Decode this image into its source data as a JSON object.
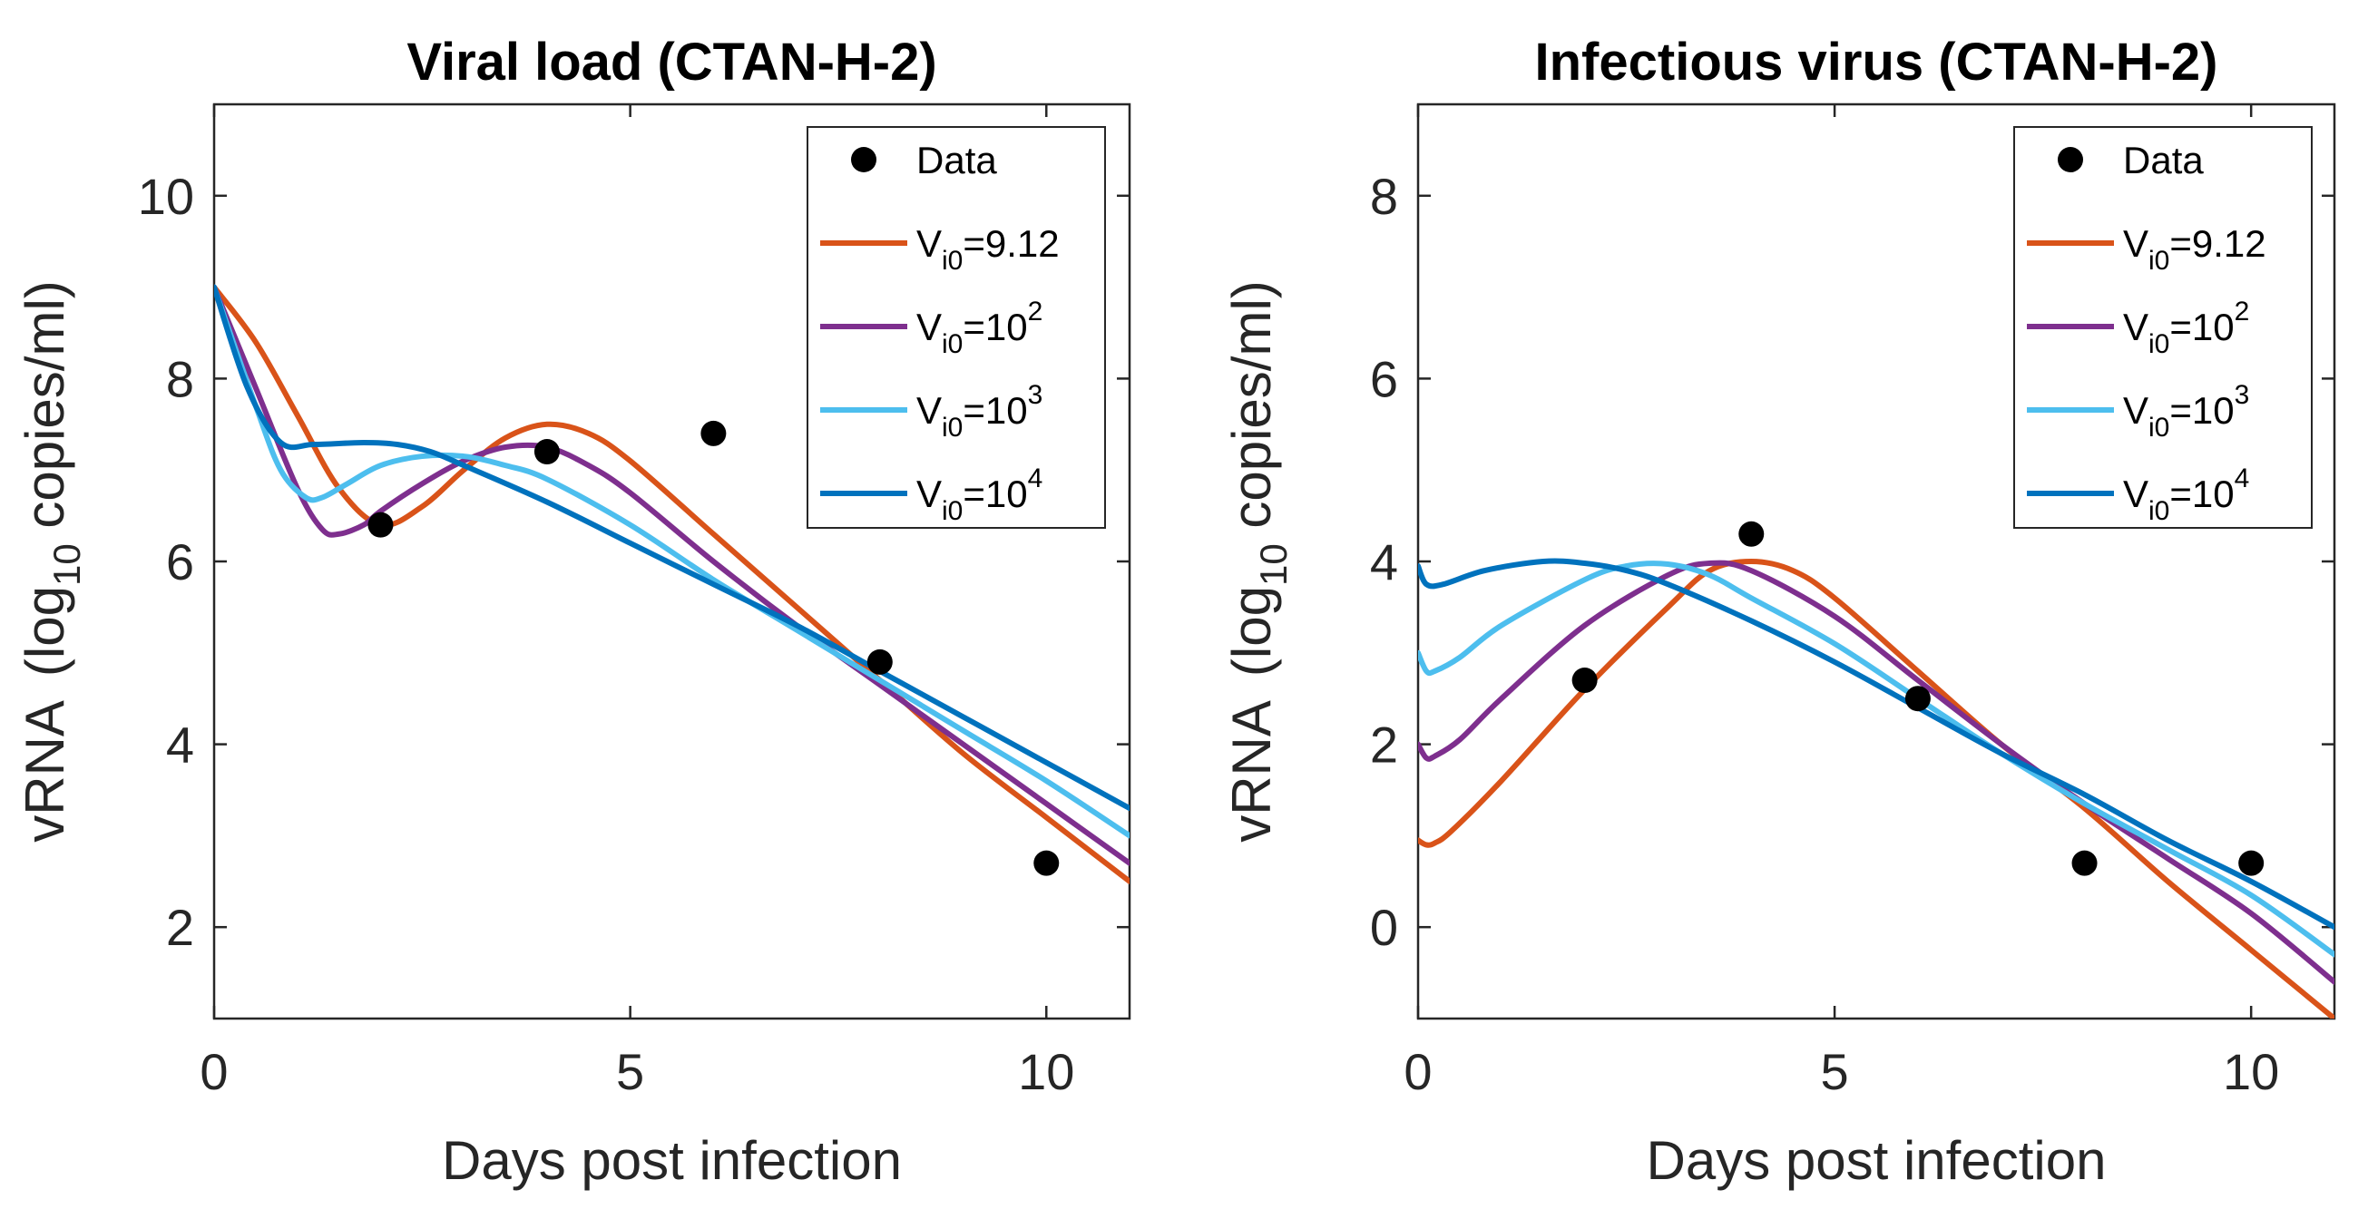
{
  "chart_data": [
    {
      "type": "line",
      "title": "Viral load (CTAN-H-2)",
      "xlabel": "Days post infection",
      "ylabel": {
        "main": "vRNA",
        "open": "(log",
        "sub": "10",
        "rest": " copies/ml)"
      },
      "xlim": [
        0,
        11
      ],
      "ylim": [
        1,
        11
      ],
      "xticks": [
        0,
        5,
        10
      ],
      "yticks": [
        2,
        4,
        6,
        8,
        10
      ],
      "grid": false,
      "legend_position": "top-right",
      "data_points": {
        "name": "Data",
        "color": "#000000",
        "x": [
          2,
          4,
          6,
          8,
          10
        ],
        "y": [
          6.4,
          7.2,
          7.4,
          4.9,
          2.7
        ]
      },
      "series": [
        {
          "name": "V_i0=9.12",
          "label": {
            "base": "V",
            "sub": "i0",
            "rest": "=9.12",
            "sup": ""
          },
          "color": "#D95319",
          "x": [
            0,
            0.5,
            1,
            1.5,
            2,
            2.5,
            3,
            3.5,
            4,
            4.5,
            5,
            6,
            7,
            8,
            9,
            10,
            11
          ],
          "y": [
            9.0,
            8.4,
            7.6,
            6.8,
            6.4,
            6.6,
            7.0,
            7.35,
            7.5,
            7.4,
            7.1,
            6.3,
            5.5,
            4.7,
            3.9,
            3.2,
            2.5
          ]
        },
        {
          "name": "V_i0=10^2",
          "label": {
            "base": "V",
            "sub": "i0",
            "rest": "=10",
            "sup": "2"
          },
          "color": "#7E2F8E",
          "x": [
            0,
            0.5,
            1,
            1.3,
            1.5,
            1.8,
            2,
            2.5,
            3,
            3.5,
            4,
            4.5,
            5,
            6,
            7,
            8,
            9,
            10,
            11
          ],
          "y": [
            9.0,
            7.9,
            6.8,
            6.35,
            6.3,
            6.4,
            6.55,
            6.85,
            7.1,
            7.25,
            7.25,
            7.05,
            6.75,
            6.0,
            5.3,
            4.65,
            4.0,
            3.35,
            2.7
          ]
        },
        {
          "name": "V_i0=10^3",
          "label": {
            "base": "V",
            "sub": "i0",
            "rest": "=10",
            "sup": "3"
          },
          "color": "#4DBEEE",
          "x": [
            0,
            0.5,
            0.8,
            1.1,
            1.3,
            1.6,
            2,
            2.5,
            3,
            3.5,
            4,
            5,
            6,
            7,
            8,
            9,
            10,
            11
          ],
          "y": [
            9.0,
            7.7,
            7.0,
            6.7,
            6.7,
            6.85,
            7.05,
            7.15,
            7.15,
            7.05,
            6.9,
            6.4,
            5.8,
            5.25,
            4.7,
            4.15,
            3.6,
            3.0
          ]
        },
        {
          "name": "V_i0=10^4",
          "label": {
            "base": "V",
            "sub": "i0",
            "rest": "=10",
            "sup": "4"
          },
          "color": "#0072BD",
          "x": [
            0,
            0.4,
            0.8,
            1.2,
            1.8,
            2.2,
            2.6,
            3,
            4,
            5,
            6,
            7,
            8,
            9,
            10,
            11
          ],
          "y": [
            9.0,
            7.9,
            7.3,
            7.28,
            7.3,
            7.28,
            7.2,
            7.05,
            6.65,
            6.2,
            5.75,
            5.3,
            4.8,
            4.3,
            3.8,
            3.3
          ]
        }
      ]
    },
    {
      "type": "line",
      "title": "Infectious virus (CTAN-H-2)",
      "xlabel": "Days post infection",
      "ylabel": {
        "main": "vRNA",
        "open": "(log",
        "sub": "10",
        "rest": " copies/ml)"
      },
      "xlim": [
        0,
        11
      ],
      "ylim": [
        -1,
        9
      ],
      "xticks": [
        0,
        5,
        10
      ],
      "yticks": [
        0,
        2,
        4,
        6,
        8
      ],
      "grid": false,
      "legend_position": "top-right",
      "data_points": {
        "name": "Data",
        "color": "#000000",
        "x": [
          2,
          4,
          6,
          8,
          10
        ],
        "y": [
          2.7,
          4.3,
          2.5,
          0.7,
          0.7
        ]
      },
      "series": [
        {
          "name": "V_i0=9.12",
          "label": {
            "base": "V",
            "sub": "i0",
            "rest": "=9.12",
            "sup": ""
          },
          "color": "#D95319",
          "x": [
            0,
            0.1,
            0.2,
            0.4,
            1,
            2,
            3,
            3.5,
            4,
            4.5,
            5,
            6,
            7,
            8,
            9,
            10,
            11
          ],
          "y": [
            0.95,
            0.9,
            0.92,
            1.05,
            1.6,
            2.6,
            3.5,
            3.9,
            4.0,
            3.9,
            3.6,
            2.8,
            2.0,
            1.3,
            0.5,
            -0.25,
            -1.0
          ]
        },
        {
          "name": "V_i0=10^2",
          "label": {
            "base": "V",
            "sub": "i0",
            "rest": "=10",
            "sup": "2"
          },
          "color": "#7E2F8E",
          "x": [
            0,
            0.1,
            0.2,
            0.5,
            1,
            2,
            3,
            3.5,
            4,
            5,
            6,
            7,
            8,
            9,
            10,
            11
          ],
          "y": [
            2.0,
            1.85,
            1.87,
            2.05,
            2.5,
            3.3,
            3.85,
            3.98,
            3.9,
            3.4,
            2.7,
            2.0,
            1.35,
            0.75,
            0.15,
            -0.6
          ]
        },
        {
          "name": "V_i0=10^3",
          "label": {
            "base": "V",
            "sub": "i0",
            "rest": "=10",
            "sup": "3"
          },
          "color": "#4DBEEE",
          "x": [
            0,
            0.1,
            0.2,
            0.5,
            1,
            2,
            2.5,
            3,
            3.5,
            4,
            5,
            6,
            7,
            8,
            9,
            10,
            11
          ],
          "y": [
            3.0,
            2.8,
            2.8,
            2.95,
            3.3,
            3.8,
            3.95,
            3.97,
            3.85,
            3.6,
            3.1,
            2.5,
            1.9,
            1.35,
            0.85,
            0.35,
            -0.3
          ]
        },
        {
          "name": "V_i0=10^4",
          "label": {
            "base": "V",
            "sub": "i0",
            "rest": "=10",
            "sup": "4"
          },
          "color": "#0072BD",
          "x": [
            0,
            0.1,
            0.3,
            0.8,
            1.5,
            2,
            2.5,
            3,
            4,
            5,
            6,
            7,
            8,
            9,
            10,
            11
          ],
          "y": [
            3.95,
            3.75,
            3.75,
            3.9,
            4.0,
            3.98,
            3.9,
            3.75,
            3.35,
            2.9,
            2.4,
            1.9,
            1.45,
            0.95,
            0.5,
            0.0
          ]
        }
      ]
    }
  ]
}
